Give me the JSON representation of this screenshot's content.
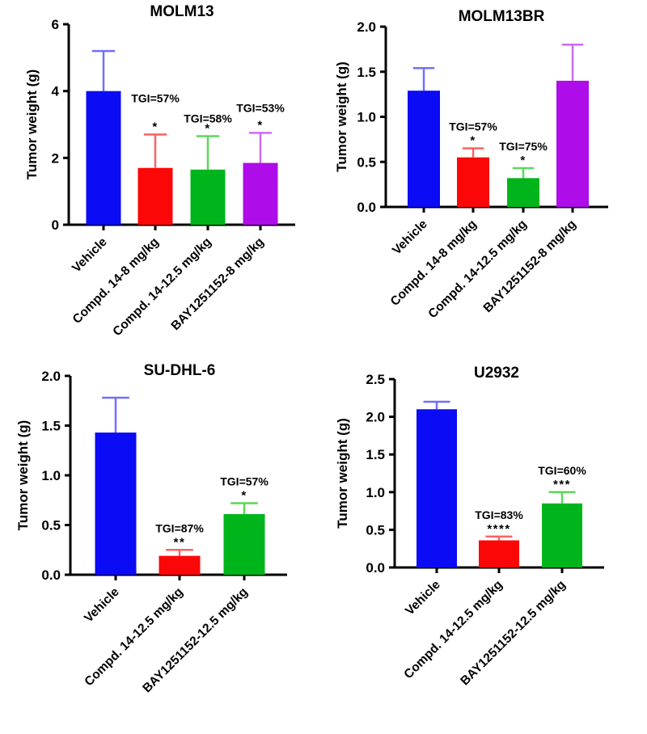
{
  "figure": {
    "background": "#ffffff",
    "axis_color": "#000000",
    "text_color": "#000000",
    "red_star_color": "#f0393c"
  },
  "chart_data": [
    {
      "type": "bar",
      "title": "MOLM13",
      "ylabel": "Tumor weight (g)",
      "xlabel": "",
      "ylim": [
        0,
        6
      ],
      "yticks": [
        "0",
        "2",
        "4",
        "6"
      ],
      "grid": false,
      "legend": false,
      "categories": [
        "Vehicle",
        "Compd. 14-8 mg/kg",
        "Compd. 14-12.5 mg/kg",
        "BAY1251152-8 mg/kg"
      ],
      "values": [
        4.0,
        1.7,
        1.65,
        1.85
      ],
      "errors_plus": [
        1.2,
        1.0,
        1.0,
        0.9
      ],
      "bar_colors": [
        "#0b0bf5",
        "#fb0707",
        "#00b51b",
        "#ae0ce8"
      ],
      "error_colors": [
        "#7070fa",
        "#fb6262",
        "#5cd65c",
        "#ce6bf2"
      ],
      "significance": [
        "",
        "*",
        "*",
        "*"
      ],
      "sig_colors": [
        "",
        "#000000",
        "#000000",
        "#000000"
      ],
      "tgi_labels": [
        "",
        "TGI=57%",
        "TGI=58%",
        "TGI=53%"
      ]
    },
    {
      "type": "bar",
      "title": "MOLM13BR",
      "ylabel": "Tumor weight (g)",
      "xlabel": "",
      "ylim": [
        0,
        2.0
      ],
      "yticks": [
        "0.0",
        "0.5",
        "1.0",
        "1.5",
        "2.0"
      ],
      "grid": false,
      "legend": false,
      "categories": [
        "Vehicle",
        "Compd. 14-8 mg/kg",
        "Compd. 14-12.5 mg/kg",
        "BAY1251152-8 mg/kg"
      ],
      "values": [
        1.29,
        0.55,
        0.32,
        1.4
      ],
      "errors_plus": [
        0.25,
        0.1,
        0.11,
        0.4
      ],
      "bar_colors": [
        "#0b0bf5",
        "#fb0707",
        "#00b51b",
        "#ae0ce8"
      ],
      "error_colors": [
        "#7070fa",
        "#fb6262",
        "#5cd65c",
        "#ce6bf2"
      ],
      "significance": [
        "",
        "*",
        "*",
        ""
      ],
      "sig_colors": [
        "",
        "#f0393c",
        "#f0393c",
        ""
      ],
      "tgi_labels": [
        "",
        "TGI=57%",
        "TGI=75%",
        ""
      ]
    },
    {
      "type": "bar",
      "title": "SU-DHL-6",
      "ylabel": "Tumor weight (g)",
      "xlabel": "",
      "ylim": [
        0,
        2.0
      ],
      "yticks": [
        "0.0",
        "0.5",
        "1.0",
        "1.5",
        "2.0"
      ],
      "grid": false,
      "legend": false,
      "categories": [
        "Vehicle",
        "Compd. 14-12.5 mg/kg",
        "BAY1251152-12.5 mg/kg"
      ],
      "values": [
        1.43,
        0.19,
        0.61
      ],
      "errors_plus": [
        0.35,
        0.06,
        0.11
      ],
      "bar_colors": [
        "#0b0bf5",
        "#fb0707",
        "#00b51b"
      ],
      "error_colors": [
        "#7070fa",
        "#fb6262",
        "#5cd65c"
      ],
      "significance": [
        "",
        "**",
        "*"
      ],
      "sig_colors": [
        "",
        "#000000",
        "#000000"
      ],
      "tgi_labels": [
        "",
        "TGI=87%",
        "TGI=57%"
      ]
    },
    {
      "type": "bar",
      "title": "U2932",
      "ylabel": "Tumor weight (g)",
      "xlabel": "",
      "ylim": [
        0,
        2.5
      ],
      "yticks": [
        "0.0",
        "0.5",
        "1.0",
        "1.5",
        "2.0",
        "2.5"
      ],
      "grid": false,
      "legend": false,
      "categories": [
        "Vehicle",
        "Compd. 14-12.5 mg/kg",
        "BAY1251152-12.5 mg/kg"
      ],
      "values": [
        2.1,
        0.36,
        0.85
      ],
      "errors_plus": [
        0.1,
        0.05,
        0.15
      ],
      "bar_colors": [
        "#0b0bf5",
        "#fb0707",
        "#00b51b"
      ],
      "error_colors": [
        "#7070fa",
        "#fb6262",
        "#5cd65c"
      ],
      "significance": [
        "",
        "****",
        "***"
      ],
      "sig_colors": [
        "",
        "#000000",
        "#000000"
      ],
      "tgi_labels": [
        "",
        "TGI=83%",
        "TGI=60%"
      ]
    }
  ]
}
